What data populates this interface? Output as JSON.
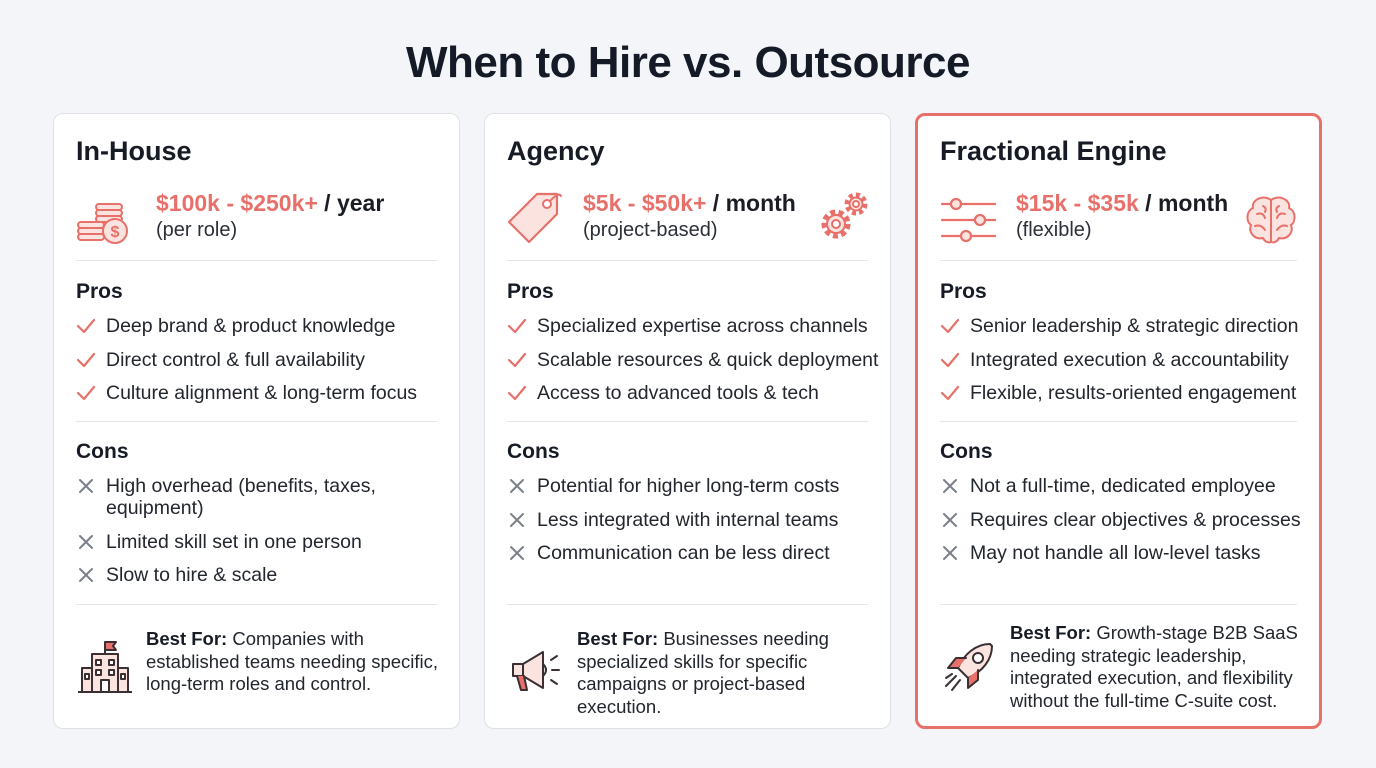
{
  "title": "When to Hire vs. Outsource",
  "cards": [
    {
      "name": "In-House",
      "price": "$100k - $250k+",
      "period": " / year",
      "note": "(per role)",
      "price_icon": "coins-icon",
      "pros_label": "Pros",
      "pros": [
        "Deep brand & product knowledge",
        "Direct control & full availability",
        "Culture alignment & long-term focus"
      ],
      "cons_label": "Cons",
      "cons": [
        "High overhead (benefits, taxes, equipment)",
        "Limited skill set in one person",
        "Slow to hire & scale"
      ],
      "best_label": "Best For:",
      "best_text": " Companies with established teams needing specific, long-term roles and control.",
      "best_icon": "office-building-icon"
    },
    {
      "name": "Agency",
      "price": "$5k - $50k+",
      "period": " / month",
      "note": "(project-based)",
      "price_icon": "price-tag-icon",
      "corner_icon": "gears-icon",
      "pros_label": "Pros",
      "pros": [
        "Specialized expertise across channels",
        "Scalable resources & quick deployment",
        "Access to advanced tools & tech"
      ],
      "cons_label": "Cons",
      "cons": [
        "Potential for higher long-term costs",
        "Less integrated with internal teams",
        "Communication can be less direct"
      ],
      "best_label": "Best For:",
      "best_text": " Businesses needing specialized skills for specific campaigns or project-based execution.",
      "best_icon": "megaphone-icon"
    },
    {
      "name": "Fractional Engine",
      "price": "$15k - $35k",
      "period": " / month",
      "note": "(flexible)",
      "price_icon": "sliders-icon",
      "corner_icon": "brain-icon",
      "pros_label": "Pros",
      "pros": [
        "Senior leadership & strategic direction",
        "Integrated execution & accountability",
        "Flexible, results-oriented engagement"
      ],
      "cons_label": "Cons",
      "cons": [
        "Not a full-time, dedicated employee",
        "Requires clear objectives & processes",
        "May not handle all low-level tasks"
      ],
      "best_label": "Best For:",
      "best_text": " Growth-stage B2B SaaS needing strategic leadership, integrated execution, and flexibility without the full-time C-suite cost.",
      "best_icon": "rocket-icon"
    }
  ],
  "colors": {
    "accent": "#e8706a",
    "accent_fill": "#fbe3e0",
    "cross": "#7a7f88",
    "title": "#141a26"
  }
}
